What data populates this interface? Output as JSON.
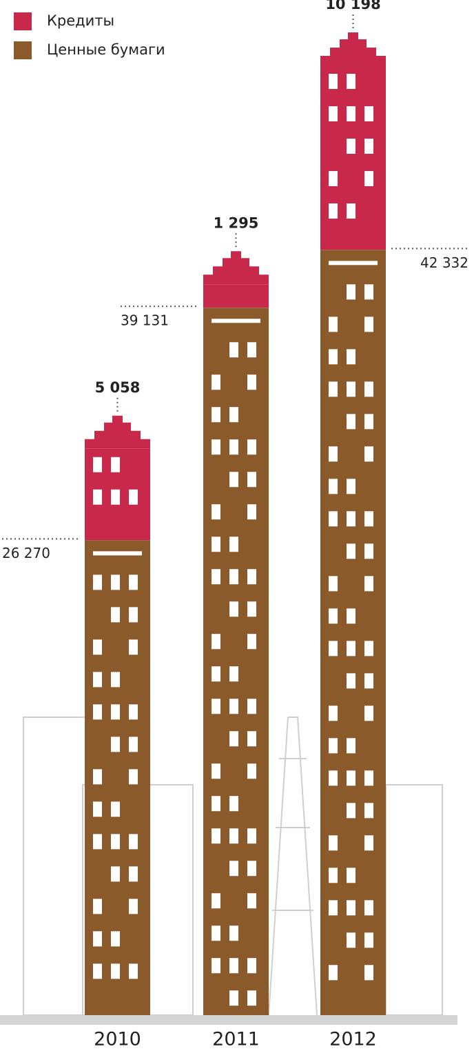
{
  "chart_data": {
    "type": "bar",
    "stacked": true,
    "categories": [
      "2010",
      "2011",
      "2012"
    ],
    "series": [
      {
        "name": "Ценные бумаги",
        "color": "#8b5a2b",
        "values": [
          26270,
          39131,
          42332
        ],
        "value_labels": [
          "26 270",
          "39 131",
          "42 332"
        ]
      },
      {
        "name": "Кредиты",
        "color": "#c8284a",
        "values": [
          5058,
          1295,
          10198
        ],
        "value_labels": [
          "5 058",
          "1 295",
          "10 198"
        ]
      }
    ]
  }
}
